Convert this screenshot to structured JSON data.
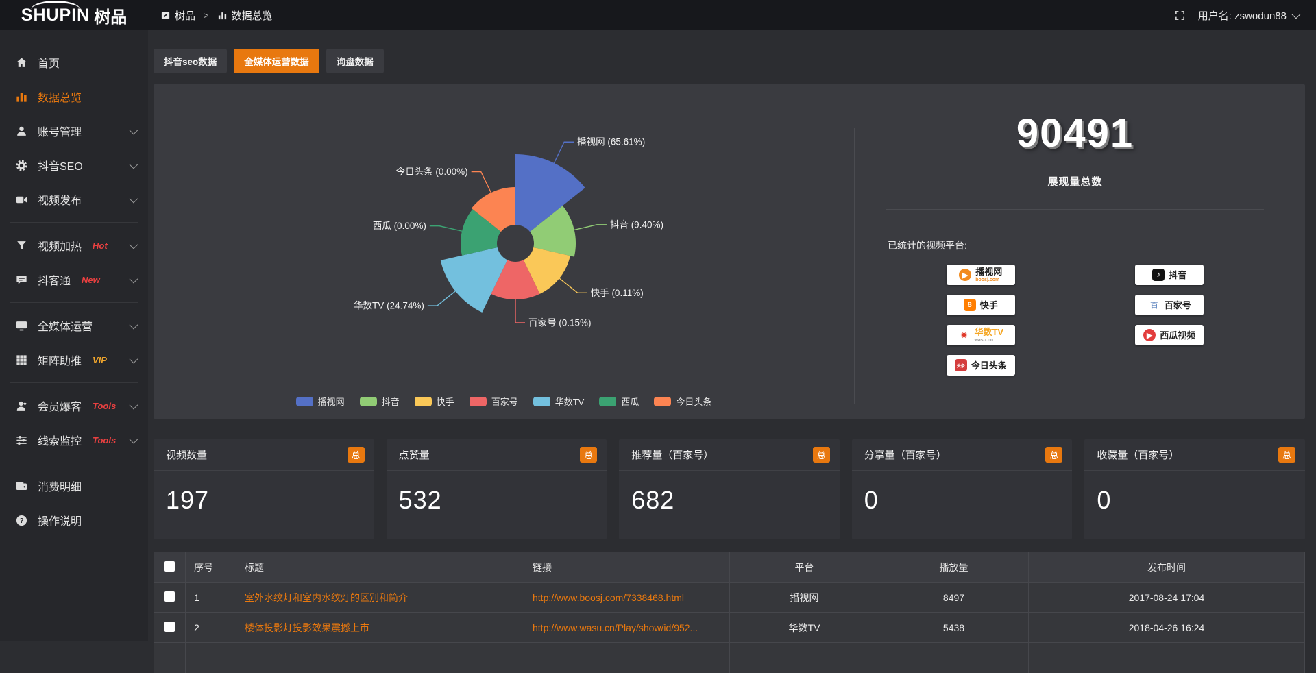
{
  "topbar": {
    "logo_en": "SHUPIN",
    "logo_cn": "树品",
    "breadcrumb_root": "树品",
    "breadcrumb_sep": ">",
    "breadcrumb_current": "数据总览",
    "username": "用户名: zswodun88"
  },
  "sidebar": {
    "items": [
      {
        "label": "首页",
        "icon": "home-icon"
      },
      {
        "label": "数据总览",
        "icon": "chart-icon",
        "active": true
      },
      {
        "label": "账号管理",
        "icon": "user-icon",
        "chevron": true
      },
      {
        "label": "抖音SEO",
        "icon": "gear-icon",
        "chevron": true
      },
      {
        "label": "视频发布",
        "icon": "video-icon",
        "chevron": true,
        "divider_after": true
      },
      {
        "label": "视频加热",
        "icon": "funnel-icon",
        "tag": "Hot",
        "tag_color": "#e84040",
        "chevron": true
      },
      {
        "label": "抖客通",
        "icon": "chat-icon",
        "tag": "New",
        "tag_color": "#e84040",
        "chevron": true,
        "divider_after": true
      },
      {
        "label": "全媒体运营",
        "icon": "monitor-icon",
        "chevron": true
      },
      {
        "label": "矩阵助推",
        "icon": "grid-icon",
        "tag": "VIP",
        "tag_color": "#efa52c",
        "chevron": true,
        "divider_after": true
      },
      {
        "label": "会员爆客",
        "icon": "member-icon",
        "tag": "Tools",
        "tag_color": "#e84040",
        "chevron": true
      },
      {
        "label": "线索监控",
        "icon": "sliders-icon",
        "tag": "Tools",
        "tag_color": "#e84040",
        "chevron": true,
        "divider_after": true
      },
      {
        "label": "消费明细",
        "icon": "wallet-icon"
      },
      {
        "label": "操作说明",
        "icon": "question-icon"
      }
    ]
  },
  "tabs": [
    {
      "label": "抖音seo数据",
      "active": false
    },
    {
      "label": "全媒体运营数据",
      "active": true
    },
    {
      "label": "询盘数据",
      "active": false
    }
  ],
  "chart_data": {
    "type": "pie",
    "subtype": "nightingale-rose",
    "label_format": "{name} ({percent})",
    "legend_position": "bottom",
    "items": [
      {
        "name": "播视网",
        "percent": "65.61%",
        "color": "#5470c6",
        "radius": 130
      },
      {
        "name": "抖音",
        "percent": "9.40%",
        "color": "#91cc75",
        "radius": 88
      },
      {
        "name": "快手",
        "percent": "0.11%",
        "color": "#fac858",
        "radius": 82
      },
      {
        "name": "百家号",
        "percent": "0.15%",
        "color": "#ee6666",
        "radius": 82
      },
      {
        "name": "华数TV",
        "percent": "24.74%",
        "color": "#73c0de",
        "radius": 112
      },
      {
        "name": "西瓜",
        "percent": "0.00%",
        "color": "#3ba272",
        "radius": 80
      },
      {
        "name": "今日头条",
        "percent": "0.00%",
        "color": "#fc8452",
        "radius": 82
      }
    ]
  },
  "summary": {
    "total_value": "90491",
    "total_label": "展现量总数",
    "platforms_label": "已统计的视频平台:",
    "platforms_left": [
      {
        "name": "播视网",
        "sub": "boosj.com",
        "sub_color": "#f28b1e",
        "icon_shape": "circle",
        "icon_bg": "#f28b1e",
        "glyph": "▶",
        "name_color": "#222"
      },
      {
        "name": "快手",
        "icon_shape": "square",
        "icon_bg": "#ff7e00",
        "glyph": "8",
        "name_color": "#222"
      },
      {
        "name": "华数TV",
        "sub": "wasu.cn",
        "sub_color": "#999999",
        "icon_shape": "none",
        "icon_bg": "transparent",
        "glyph": "✹",
        "glyph_color": "#e0392a",
        "name_color": "#f5a623"
      },
      {
        "name": "今日头条",
        "icon_shape": "square",
        "icon_bg": "#d43d3d",
        "glyph": "头条",
        "glyph_size": "6px",
        "name_color": "#222"
      }
    ],
    "platforms_right": [
      {
        "name": "抖音",
        "icon_shape": "square",
        "icon_bg": "#121212",
        "glyph": "♪",
        "name_color": "#222"
      },
      {
        "name": "百家号",
        "icon_shape": "none",
        "icon_bg": "transparent",
        "glyph": "百",
        "glyph_color": "#2a5caa",
        "name_color": "#222"
      },
      {
        "name": "西瓜视频",
        "icon_shape": "circle",
        "icon_bg": "#e23c3c",
        "glyph": "▶",
        "name_color": "#222"
      }
    ]
  },
  "stats": [
    {
      "title": "视频数量",
      "badge": "总",
      "value": "197"
    },
    {
      "title": "点赞量",
      "badge": "总",
      "value": "532"
    },
    {
      "title": "推荐量（百家号）",
      "badge": "总",
      "value": "682"
    },
    {
      "title": "分享量（百家号）",
      "badge": "总",
      "value": "0"
    },
    {
      "title": "收藏量（百家号）",
      "badge": "总",
      "value": "0"
    }
  ],
  "table": {
    "headers": {
      "no": "序号",
      "title": "标题",
      "link": "链接",
      "platform": "平台",
      "plays": "播放量",
      "time": "发布时间"
    },
    "rows": [
      {
        "no": "1",
        "title": "室外水纹灯和室内水纹灯的区别和简介",
        "link": "http://www.boosj.com/7338468.html",
        "platform": "播视网",
        "plays": "8497",
        "time": "2017-08-24 17:04"
      },
      {
        "no": "2",
        "title": "楼体投影灯投影效果震撼上市",
        "link": "http://www.wasu.cn/Play/show/id/952...",
        "platform": "华数TV",
        "plays": "5438",
        "time": "2018-04-26 16:24"
      }
    ]
  },
  "colors": {
    "accent": "#e8780f",
    "panel": "#3a3b40",
    "page": "#2c2d31",
    "sidebar": "#26272b",
    "topbar": "#17181c"
  }
}
